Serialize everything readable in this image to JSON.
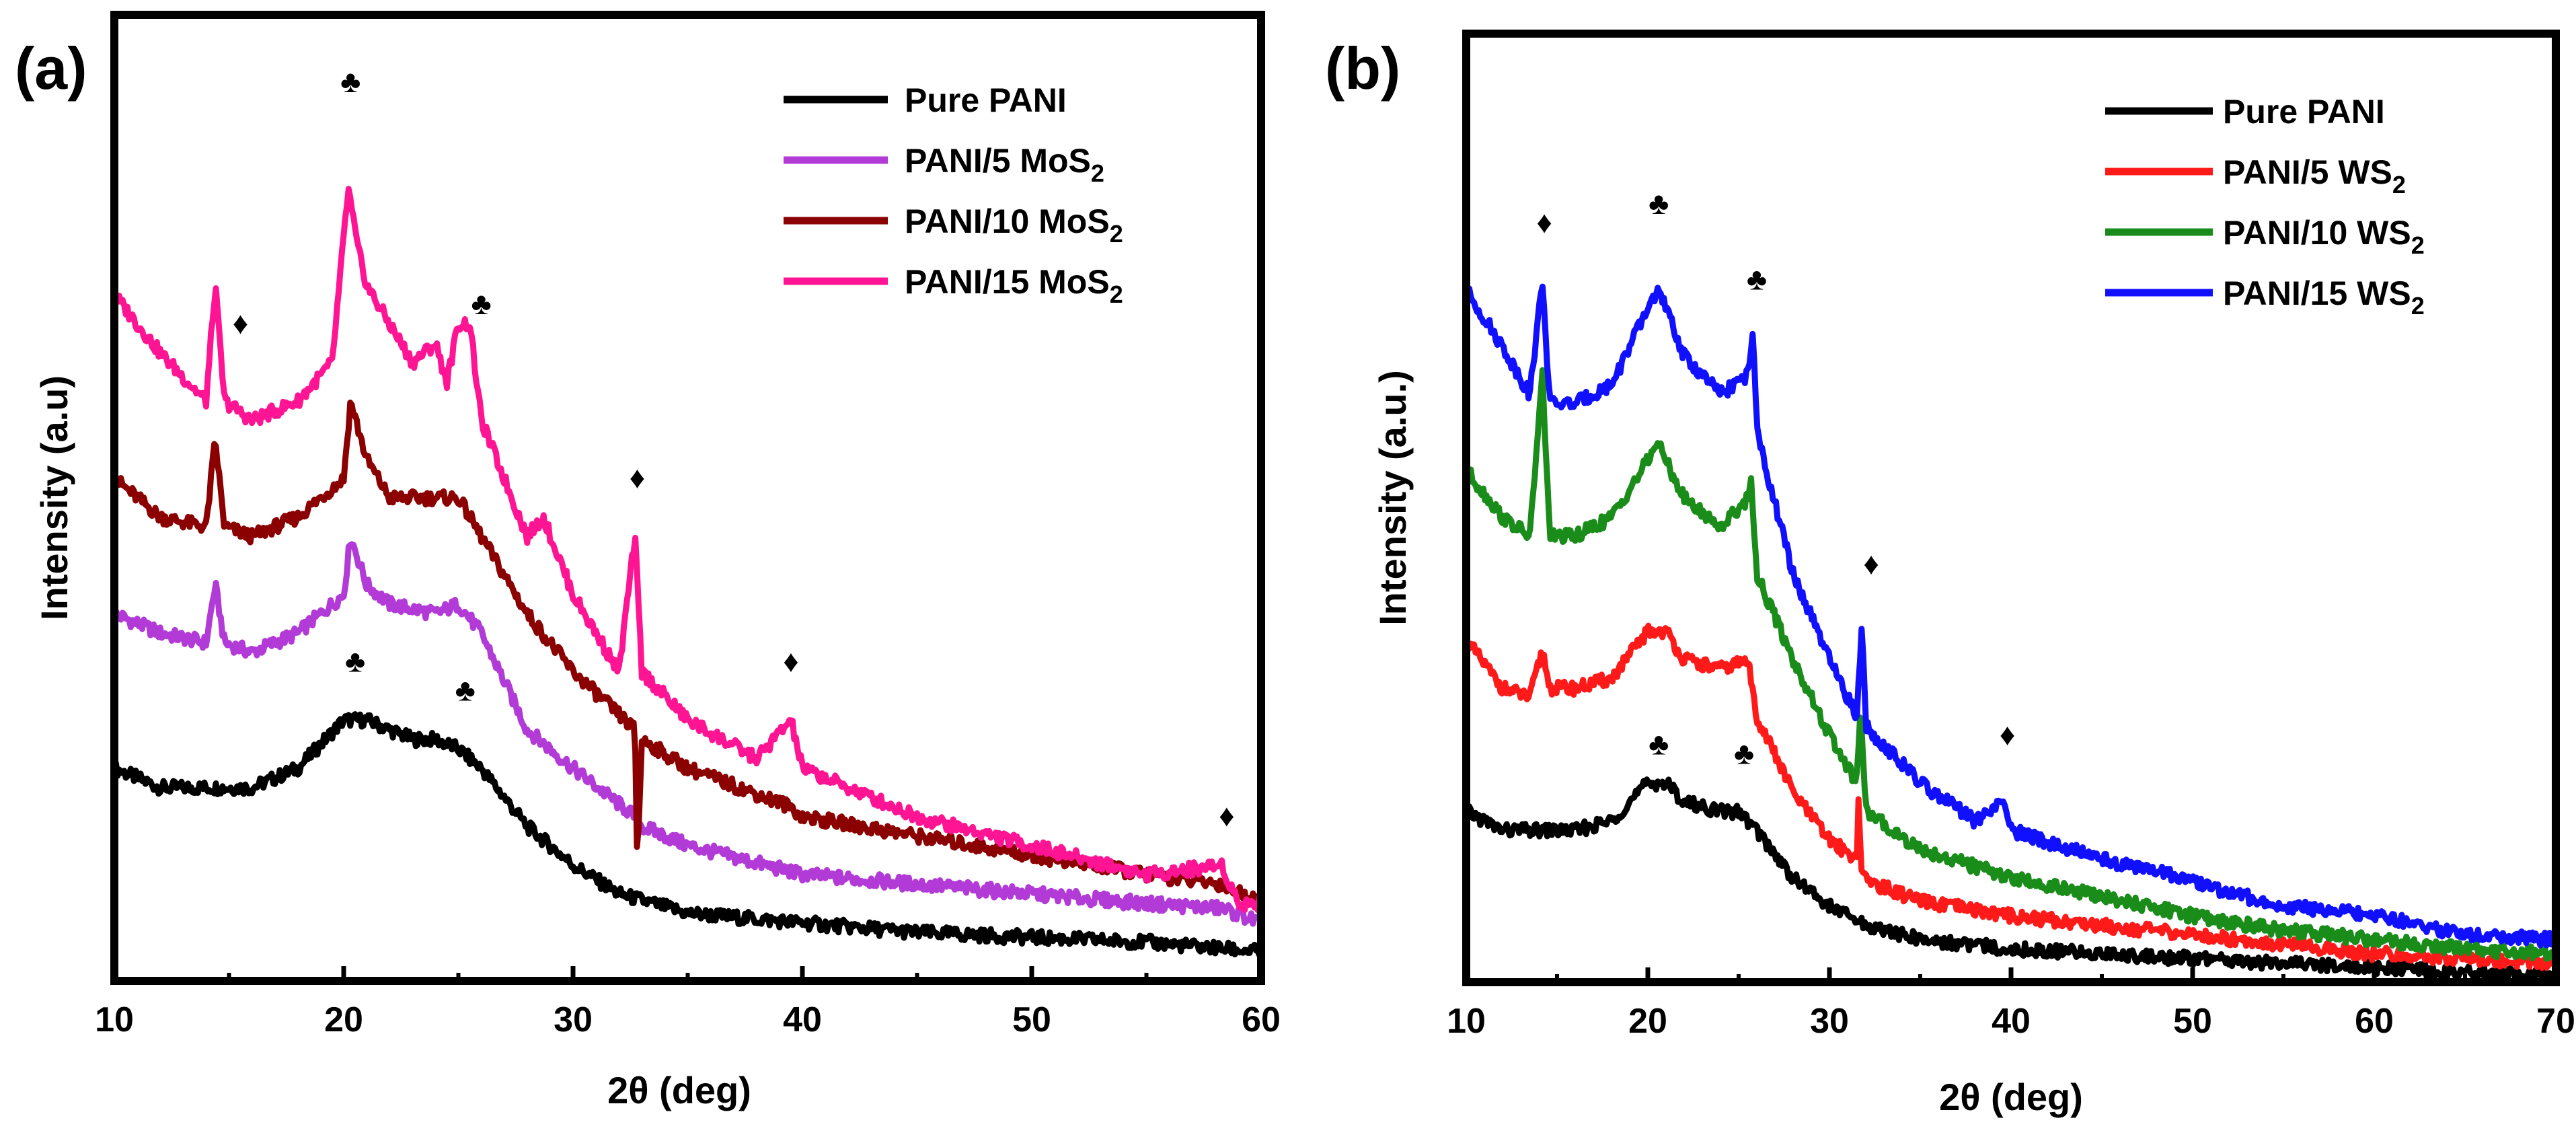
{
  "chart_data": [
    {
      "type": "line",
      "panel_label": "(a)",
      "xlabel": "2θ (deg)",
      "ylabel": "Intensity (a.u)",
      "xlim": [
        10,
        60
      ],
      "ylim": [
        0,
        1
      ],
      "x_ticks": [
        "10",
        "20",
        "30",
        "40",
        "50",
        "60"
      ],
      "legend_position": "top-right",
      "series": [
        {
          "name": "Pure PANI",
          "color": "#000000",
          "label_main": "Pure PANI",
          "label_sub": "",
          "points": [
            [
              10,
              0.22
            ],
            [
              12,
              0.2
            ],
            [
              14,
              0.2
            ],
            [
              16,
              0.2
            ],
            [
              18,
              0.22
            ],
            [
              20,
              0.27
            ],
            [
              21,
              0.27
            ],
            [
              22,
              0.26
            ],
            [
              23,
              0.25
            ],
            [
              24,
              0.25
            ],
            [
              25,
              0.24
            ],
            [
              26,
              0.22
            ],
            [
              28,
              0.16
            ],
            [
              30,
              0.12
            ],
            [
              32,
              0.09
            ],
            [
              35,
              0.07
            ],
            [
              40,
              0.06
            ],
            [
              45,
              0.05
            ],
            [
              50,
              0.045
            ],
            [
              55,
              0.04
            ],
            [
              60,
              0.03
            ]
          ]
        },
        {
          "name": "PANI/5 MoS2",
          "color": "#b23ad6",
          "label_main": "PANI/5 MoS",
          "label_sub": "2",
          "points": [
            [
              10,
              0.38
            ],
            [
              12,
              0.36
            ],
            [
              14,
              0.35
            ],
            [
              14.4,
              0.41
            ],
            [
              14.8,
              0.35
            ],
            [
              16,
              0.34
            ],
            [
              18,
              0.36
            ],
            [
              20,
              0.4
            ],
            [
              20.3,
              0.46
            ],
            [
              21,
              0.41
            ],
            [
              22,
              0.39
            ],
            [
              24,
              0.38
            ],
            [
              25,
              0.39
            ],
            [
              26,
              0.36
            ],
            [
              28,
              0.26
            ],
            [
              30,
              0.22
            ],
            [
              32.7,
              0.17
            ],
            [
              33,
              0.16
            ],
            [
              35,
              0.14
            ],
            [
              40,
              0.11
            ],
            [
              45,
              0.1
            ],
            [
              50,
              0.09
            ],
            [
              55,
              0.08
            ],
            [
              58.3,
              0.075
            ],
            [
              60,
              0.06
            ]
          ]
        },
        {
          "name": "PANI/10 MoS2",
          "color": "#8b0000",
          "label_main": "PANI/10 MoS",
          "label_sub": "2",
          "points": [
            [
              10,
              0.52
            ],
            [
              12,
              0.48
            ],
            [
              14,
              0.47
            ],
            [
              14.4,
              0.56
            ],
            [
              14.8,
              0.47
            ],
            [
              16,
              0.46
            ],
            [
              18,
              0.48
            ],
            [
              20,
              0.52
            ],
            [
              20.3,
              0.6
            ],
            [
              21,
              0.54
            ],
            [
              22,
              0.5
            ],
            [
              24,
              0.5
            ],
            [
              25,
              0.5
            ],
            [
              26,
              0.46
            ],
            [
              28,
              0.38
            ],
            [
              30,
              0.32
            ],
            [
              32.7,
              0.26
            ],
            [
              32.8,
              0.12
            ],
            [
              33,
              0.25
            ],
            [
              35,
              0.22
            ],
            [
              39.5,
              0.18
            ],
            [
              40,
              0.17
            ],
            [
              45,
              0.15
            ],
            [
              50,
              0.13
            ],
            [
              55,
              0.11
            ],
            [
              58.3,
              0.1
            ],
            [
              60,
              0.08
            ]
          ]
        },
        {
          "name": "PANI/15 MoS2",
          "color": "#ff1493",
          "label_main": "PANI/15 MoS",
          "label_sub": "2",
          "points": [
            [
              10,
              0.71
            ],
            [
              12,
              0.65
            ],
            [
              14,
              0.6
            ],
            [
              14.4,
              0.72
            ],
            [
              14.8,
              0.6
            ],
            [
              16,
              0.58
            ],
            [
              18,
              0.6
            ],
            [
              19.5,
              0.64
            ],
            [
              20.2,
              0.82
            ],
            [
              20.6,
              0.76
            ],
            [
              21,
              0.72
            ],
            [
              22,
              0.68
            ],
            [
              23,
              0.64
            ],
            [
              24,
              0.66
            ],
            [
              24.5,
              0.62
            ],
            [
              25,
              0.68
            ],
            [
              25.5,
              0.68
            ],
            [
              26,
              0.58
            ],
            [
              28,
              0.46
            ],
            [
              28.7,
              0.48
            ],
            [
              30,
              0.4
            ],
            [
              32,
              0.32
            ],
            [
              32.7,
              0.46
            ],
            [
              33,
              0.32
            ],
            [
              35,
              0.27
            ],
            [
              38,
              0.23
            ],
            [
              39.5,
              0.27
            ],
            [
              40,
              0.22
            ],
            [
              43,
              0.19
            ],
            [
              45,
              0.17
            ],
            [
              50,
              0.14
            ],
            [
              55,
              0.11
            ],
            [
              58.3,
              0.12
            ],
            [
              59,
              0.08
            ],
            [
              60,
              0.08
            ]
          ]
        }
      ],
      "annotations": [
        {
          "symbol": "♦",
          "x": 15.5,
          "y": 0.67
        },
        {
          "symbol": "♣",
          "x": 20.3,
          "y": 0.92
        },
        {
          "symbol": "♣",
          "x": 26.0,
          "y": 0.69
        },
        {
          "symbol": "♦",
          "x": 32.8,
          "y": 0.51
        },
        {
          "symbol": "♦",
          "x": 39.5,
          "y": 0.32
        },
        {
          "symbol": "♦",
          "x": 58.5,
          "y": 0.16
        },
        {
          "symbol": "♣",
          "x": 20.5,
          "y": 0.32
        },
        {
          "symbol": "♣",
          "x": 25.3,
          "y": 0.29
        }
      ]
    },
    {
      "type": "line",
      "panel_label": "(b)",
      "xlabel": "2θ (deg)",
      "ylabel": "Intensity (a.u.)",
      "xlim": [
        10,
        70
      ],
      "ylim": [
        0,
        1
      ],
      "x_ticks": [
        "10",
        "20",
        "30",
        "40",
        "50",
        "60",
        "70"
      ],
      "legend_position": "top-right",
      "series": [
        {
          "name": "Pure PANI",
          "color": "#000000",
          "label_main": "Pure PANI",
          "label_sub": "",
          "points": [
            [
              10,
              0.18
            ],
            [
              12,
              0.16
            ],
            [
              14,
              0.16
            ],
            [
              16,
              0.16
            ],
            [
              18,
              0.17
            ],
            [
              20,
              0.21
            ],
            [
              21,
              0.21
            ],
            [
              22,
              0.19
            ],
            [
              24,
              0.18
            ],
            [
              25,
              0.18
            ],
            [
              26,
              0.16
            ],
            [
              28,
              0.11
            ],
            [
              30,
              0.08
            ],
            [
              32,
              0.06
            ],
            [
              35,
              0.045
            ],
            [
              40,
              0.035
            ],
            [
              45,
              0.03
            ],
            [
              50,
              0.025
            ],
            [
              55,
              0.02
            ],
            [
              60,
              0.015
            ],
            [
              65,
              0.01
            ],
            [
              70,
              0.005
            ]
          ]
        },
        {
          "name": "PANI/5 WS2",
          "color": "#ff1a1a",
          "label_main": "PANI/5 WS",
          "label_sub": "2",
          "points": [
            [
              10,
              0.36
            ],
            [
              12,
              0.31
            ],
            [
              13.5,
              0.3
            ],
            [
              14.2,
              0.35
            ],
            [
              14.6,
              0.31
            ],
            [
              16,
              0.31
            ],
            [
              18,
              0.32
            ],
            [
              20,
              0.37
            ],
            [
              21,
              0.37
            ],
            [
              22,
              0.34
            ],
            [
              24,
              0.33
            ],
            [
              25.5,
              0.34
            ],
            [
              26,
              0.28
            ],
            [
              28,
              0.2
            ],
            [
              30,
              0.15
            ],
            [
              31.5,
              0.13
            ],
            [
              31.6,
              0.19
            ],
            [
              31.8,
              0.11
            ],
            [
              33,
              0.1
            ],
            [
              35,
              0.085
            ],
            [
              40,
              0.07
            ],
            [
              45,
              0.06
            ],
            [
              50,
              0.05
            ],
            [
              55,
              0.04
            ],
            [
              60,
              0.03
            ],
            [
              65,
              0.025
            ],
            [
              70,
              0.02
            ]
          ]
        },
        {
          "name": "PANI/10 WS2",
          "color": "#1a8c1a",
          "label_main": "PANI/10 WS",
          "label_sub": "2",
          "points": [
            [
              10,
              0.54
            ],
            [
              12,
              0.49
            ],
            [
              13.5,
              0.47
            ],
            [
              14.2,
              0.64
            ],
            [
              14.6,
              0.47
            ],
            [
              16,
              0.47
            ],
            [
              18,
              0.49
            ],
            [
              20,
              0.55
            ],
            [
              20.5,
              0.57
            ],
            [
              21,
              0.55
            ],
            [
              22,
              0.51
            ],
            [
              24,
              0.48
            ],
            [
              25.5,
              0.51
            ],
            [
              25.7,
              0.53
            ],
            [
              26,
              0.43
            ],
            [
              28,
              0.34
            ],
            [
              30,
              0.26
            ],
            [
              31.5,
              0.21
            ],
            [
              31.7,
              0.29
            ],
            [
              32,
              0.18
            ],
            [
              35,
              0.14
            ],
            [
              40,
              0.11
            ],
            [
              45,
              0.09
            ],
            [
              50,
              0.07
            ],
            [
              55,
              0.055
            ],
            [
              60,
              0.045
            ],
            [
              65,
              0.035
            ],
            [
              70,
              0.03
            ]
          ]
        },
        {
          "name": "PANI/15 WS2",
          "color": "#1010ff",
          "label_main": "PANI/15 WS",
          "label_sub": "2",
          "points": [
            [
              10,
              0.73
            ],
            [
              12,
              0.67
            ],
            [
              13.5,
              0.62
            ],
            [
              14.2,
              0.74
            ],
            [
              14.6,
              0.61
            ],
            [
              16,
              0.61
            ],
            [
              18,
              0.63
            ],
            [
              20,
              0.71
            ],
            [
              20.5,
              0.73
            ],
            [
              21,
              0.71
            ],
            [
              22,
              0.66
            ],
            [
              24,
              0.62
            ],
            [
              25.5,
              0.64
            ],
            [
              25.8,
              0.69
            ],
            [
              26,
              0.58
            ],
            [
              28,
              0.43
            ],
            [
              30,
              0.34
            ],
            [
              31.5,
              0.28
            ],
            [
              31.8,
              0.38
            ],
            [
              32,
              0.27
            ],
            [
              35,
              0.21
            ],
            [
              38,
              0.17
            ],
            [
              39.6,
              0.19
            ],
            [
              40,
              0.16
            ],
            [
              45,
              0.13
            ],
            [
              49.5,
              0.11
            ],
            [
              50,
              0.105
            ],
            [
              55,
              0.08
            ],
            [
              58.3,
              0.075
            ],
            [
              60,
              0.07
            ],
            [
              65,
              0.05
            ],
            [
              70,
              0.045
            ]
          ]
        }
      ],
      "annotations": [
        {
          "symbol": "♦",
          "x": 14.3,
          "y": 0.79
        },
        {
          "symbol": "♣",
          "x": 20.6,
          "y": 0.81
        },
        {
          "symbol": "♣",
          "x": 26.0,
          "y": 0.73
        },
        {
          "symbol": "♦",
          "x": 32.3,
          "y": 0.43
        },
        {
          "symbol": "♦",
          "x": 39.8,
          "y": 0.25
        },
        {
          "symbol": "♣",
          "x": 20.6,
          "y": 0.24
        },
        {
          "symbol": "♣",
          "x": 25.3,
          "y": 0.23
        }
      ]
    }
  ]
}
